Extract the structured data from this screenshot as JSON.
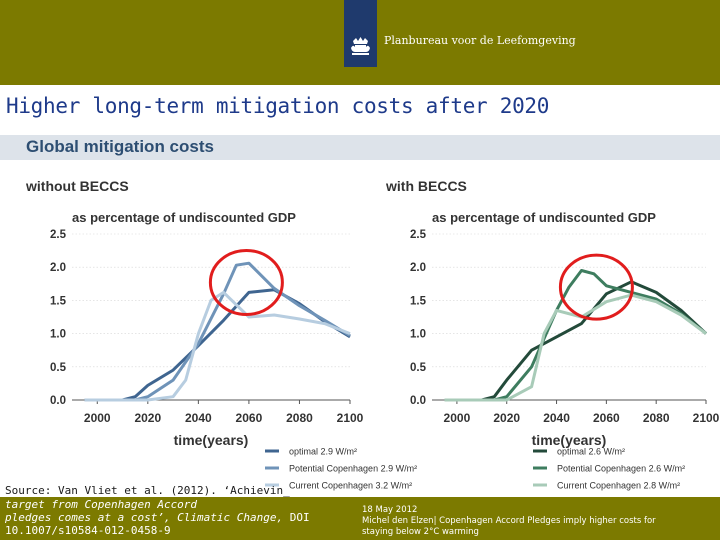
{
  "header": {
    "org_name": "Planbureau voor de Leefomgeving",
    "colors": {
      "band": "#7c7a00",
      "logo": "#1f3a6d"
    }
  },
  "slide": {
    "title": "Higher long-term mitigation costs after 2020"
  },
  "figure": {
    "title": "Global mitigation costs"
  },
  "source": {
    "line1": "Source: Van Vliet et al. (2012). ‘Achievin_",
    "line2": "target from Copenhagen Accord",
    "line3_italic": "pledges comes at a cost’, Climatic Change,",
    "line3_rest": " DOI",
    "line4": "10.1007/s10584-012-0458-9"
  },
  "footer": {
    "date": "18 May 2012",
    "credit": "Michel den Elzen| Copenhagen Accord Pledges imply higher costs for staying below 2°C warming"
  },
  "chart_data": [
    {
      "type": "line",
      "panel_title": "without BECCS",
      "ylabel": "as percentage of undiscounted GDP",
      "xlabel": "time(years)",
      "xlim": [
        1990,
        2100
      ],
      "ylim": [
        0,
        2.5
      ],
      "x_ticks": [
        2000,
        2020,
        2040,
        2060,
        2080,
        2100
      ],
      "y_ticks": [
        "0.0",
        "0.5",
        "1.0",
        "1.5",
        "2.0",
        "2.5"
      ],
      "highlight_circle": {
        "x": 2059,
        "y": 1.77
      },
      "series": [
        {
          "name": "optimal 2.9 W/m²",
          "color": "#3f6590",
          "x": [
            1995,
            2010,
            2015,
            2020,
            2030,
            2040,
            2050,
            2060,
            2070,
            2080,
            2090,
            2100
          ],
          "y": [
            0,
            0,
            0.05,
            0.22,
            0.45,
            0.82,
            1.2,
            1.62,
            1.66,
            1.45,
            1.18,
            0.95
          ]
        },
        {
          "name": "Potential Copenhagen 2.9 W/m²",
          "color": "#6f93b8",
          "x": [
            1995,
            2010,
            2015,
            2020,
            2030,
            2040,
            2050,
            2055,
            2060,
            2070,
            2080,
            2090,
            2100
          ],
          "y": [
            0,
            0,
            0,
            0.05,
            0.3,
            0.85,
            1.6,
            2.03,
            2.06,
            1.68,
            1.42,
            1.2,
            0.97
          ]
        },
        {
          "name": "Current Copenhagen 3.2 W/m²",
          "color": "#b7cde0",
          "x": [
            1995,
            2020,
            2030,
            2035,
            2040,
            2045,
            2050,
            2060,
            2070,
            2080,
            2090,
            2100
          ],
          "y": [
            0,
            0,
            0.05,
            0.3,
            1.0,
            1.5,
            1.62,
            1.25,
            1.28,
            1.22,
            1.15,
            1.0
          ]
        }
      ]
    },
    {
      "type": "line",
      "panel_title": "with BECCS",
      "ylabel": "as percentage of undiscounted GDP",
      "xlabel": "time(years)",
      "xlim": [
        1990,
        2100
      ],
      "ylim": [
        0,
        2.5
      ],
      "x_ticks": [
        2000,
        2020,
        2040,
        2060,
        2080,
        2100
      ],
      "y_ticks": [
        "0.0",
        "0.5",
        "1.0",
        "1.5",
        "2.0",
        "2.5"
      ],
      "highlight_circle": {
        "x": 2056,
        "y": 1.7
      },
      "series": [
        {
          "name": "optimal 2.6 W/m²",
          "color": "#234a3a",
          "x": [
            1995,
            2010,
            2015,
            2020,
            2030,
            2040,
            2050,
            2060,
            2070,
            2080,
            2090,
            2100
          ],
          "y": [
            0,
            0,
            0.05,
            0.3,
            0.75,
            0.95,
            1.15,
            1.6,
            1.78,
            1.62,
            1.35,
            1.0
          ]
        },
        {
          "name": "Potential Copenhagen 2.6 W/m²",
          "color": "#3e7d5f",
          "x": [
            1995,
            2015,
            2020,
            2030,
            2040,
            2045,
            2050,
            2055,
            2060,
            2070,
            2080,
            2090,
            2100
          ],
          "y": [
            0,
            0,
            0.05,
            0.5,
            1.35,
            1.7,
            1.95,
            1.9,
            1.72,
            1.62,
            1.52,
            1.3,
            1.0
          ]
        },
        {
          "name": "Current Copenhagen 2.8 W/m²",
          "color": "#a8cbb8",
          "x": [
            1995,
            2020,
            2030,
            2035,
            2040,
            2050,
            2060,
            2070,
            2080,
            2090,
            2100
          ],
          "y": [
            0,
            0,
            0.2,
            1.0,
            1.35,
            1.25,
            1.48,
            1.58,
            1.48,
            1.28,
            1.0
          ]
        }
      ]
    }
  ]
}
